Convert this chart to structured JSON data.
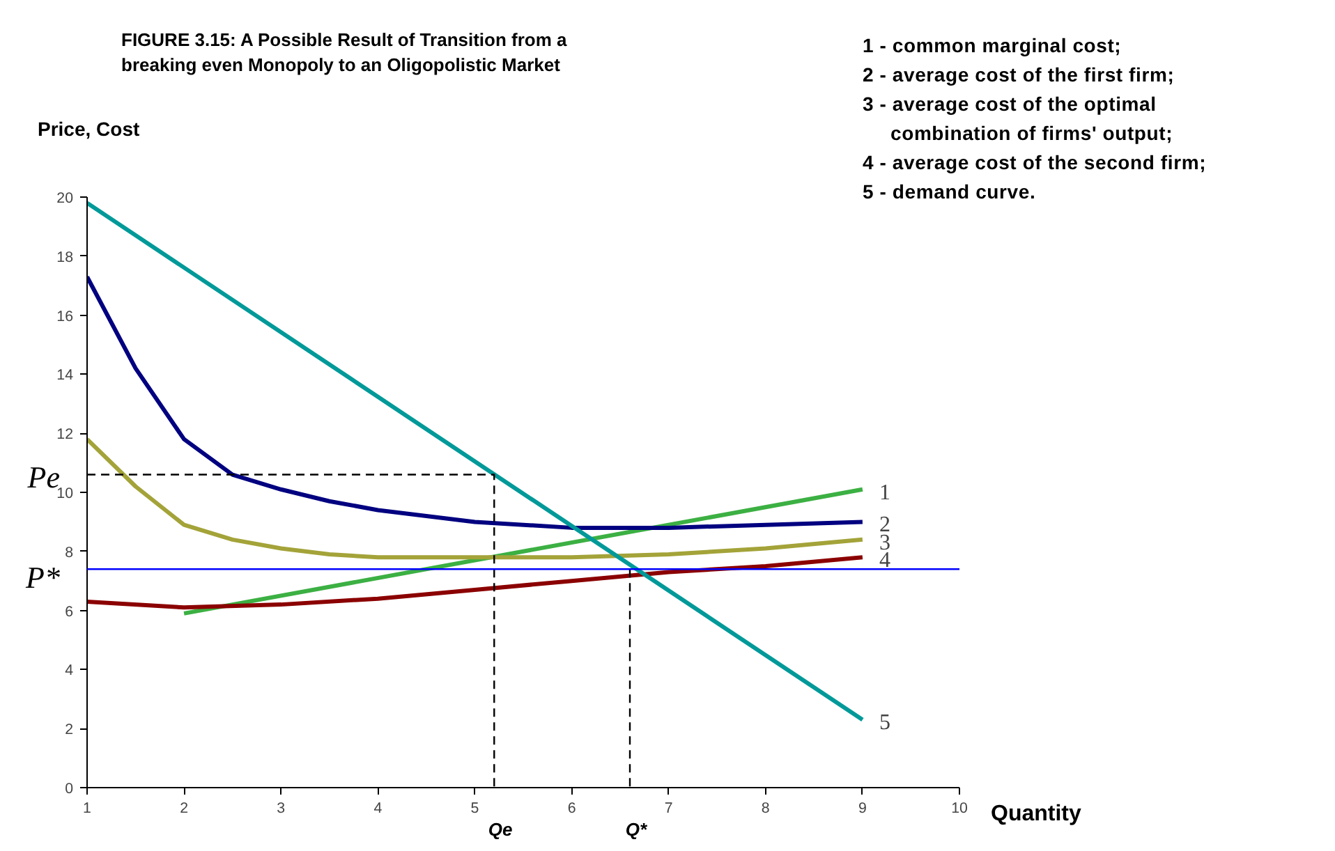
{
  "chart_data": {
    "type": "line",
    "title": "FIGURE 3.15: A Possible Result of Transition from a\nbreaking even Monopoly to an Oligopolistic Market",
    "xlabel": "Quantity",
    "ylabel": "Price, Cost",
    "xlim": [
      1,
      10
    ],
    "ylim": [
      0,
      20
    ],
    "xticks": [
      1,
      2,
      3,
      4,
      5,
      6,
      7,
      8,
      9,
      10
    ],
    "yticks": [
      0,
      2,
      4,
      6,
      8,
      10,
      12,
      14,
      16,
      18,
      20
    ],
    "grid": false,
    "legend": false,
    "marker": "none",
    "series": [
      {
        "name": "1",
        "color": "#3cb043",
        "x": [
          2,
          9
        ],
        "values": [
          5.9,
          10.1
        ]
      },
      {
        "name": "2",
        "color": "#000080",
        "x": [
          1,
          1.5,
          2,
          2.5,
          3,
          3.5,
          4,
          4.5,
          5,
          6,
          7,
          8,
          9
        ],
        "values": [
          17.3,
          14.2,
          11.8,
          10.6,
          10.1,
          9.7,
          9.4,
          9.2,
          9.0,
          8.8,
          8.8,
          8.9,
          9.0
        ]
      },
      {
        "name": "3",
        "color": "#a3a339",
        "x": [
          1,
          1.5,
          2,
          2.5,
          3,
          3.5,
          4,
          5,
          6,
          7,
          8,
          9
        ],
        "values": [
          11.8,
          10.2,
          8.9,
          8.4,
          8.1,
          7.9,
          7.8,
          7.8,
          7.8,
          7.9,
          8.1,
          8.4
        ]
      },
      {
        "name": "4",
        "color": "#8b0000",
        "x": [
          1,
          2,
          3,
          4,
          5,
          6,
          7,
          8,
          9
        ],
        "values": [
          6.3,
          6.1,
          6.2,
          6.4,
          6.7,
          7.0,
          7.3,
          7.5,
          7.8
        ]
      },
      {
        "name": "5",
        "color": "#009999",
        "x": [
          1,
          9
        ],
        "values": [
          19.8,
          2.3
        ]
      },
      {
        "color": "#000000",
        "line_style": "dashed",
        "x": [
          1,
          5.2,
          5.2
        ],
        "values": [
          10.6,
          10.6,
          0
        ]
      },
      {
        "color": "#000000",
        "line_style": "dashed",
        "x": [
          6.6,
          6.6
        ],
        "values": [
          7.4,
          0
        ]
      }
    ],
    "ref_lines": [
      {
        "axis": "y",
        "value": 7.4,
        "label": "P*",
        "color": "#0000ff"
      }
    ],
    "annotations": [
      {
        "text": "Pe",
        "x": 1,
        "y": 10.6
      },
      {
        "text": "Qe",
        "x": 5.2,
        "y": 0
      },
      {
        "text": "Q*",
        "x": 6.6,
        "y": 0
      },
      "1 - common marginal cost;",
      "2 - average cost of the first firm;",
      "3 - average cost of the optimal",
      "combination of firms' output;",
      "4 - average cost of the second firm;",
      "5 - demand curve."
    ]
  }
}
